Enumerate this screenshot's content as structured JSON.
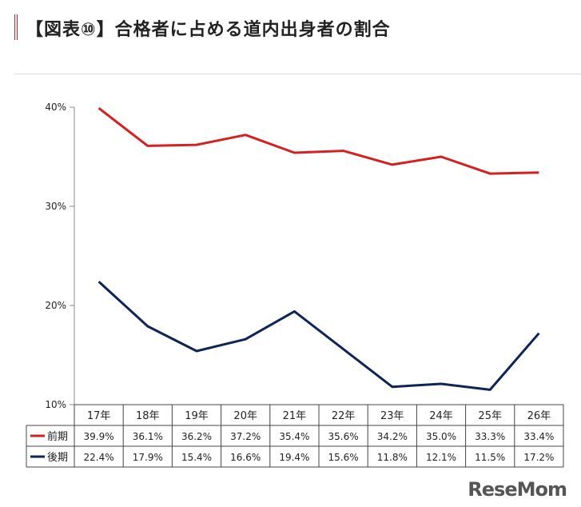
{
  "page": {
    "title": "【図表⑩】合格者に占める道内出身者の割合",
    "logo": "ReseMom"
  },
  "chart_data": {
    "type": "line",
    "categories": [
      "17年",
      "18年",
      "19年",
      "20年",
      "21年",
      "22年",
      "23年",
      "24年",
      "25年",
      "26年"
    ],
    "series": [
      {
        "name": "前期",
        "color": "#d42020",
        "values": [
          39.9,
          36.1,
          36.2,
          37.2,
          35.4,
          35.6,
          34.2,
          35.0,
          33.3,
          33.4
        ],
        "labels": [
          "39.9%",
          "36.1%",
          "36.2%",
          "37.2%",
          "35.4%",
          "35.6%",
          "34.2%",
          "35.0%",
          "33.3%",
          "33.4%"
        ]
      },
      {
        "name": "後期",
        "color": "#0f2456",
        "values": [
          22.4,
          17.9,
          15.4,
          16.6,
          19.4,
          15.6,
          11.8,
          12.1,
          11.5,
          17.2
        ],
        "labels": [
          "22.4%",
          "17.9%",
          "15.4%",
          "16.6%",
          "19.4%",
          "15.6%",
          "11.8%",
          "12.1%",
          "11.5%",
          "17.2%"
        ]
      }
    ],
    "ylim": [
      10,
      40
    ],
    "yticks": [
      40,
      30,
      20,
      10
    ],
    "ytick_labels": [
      "40%",
      "30%",
      "20%",
      "10%"
    ],
    "grid": false
  }
}
